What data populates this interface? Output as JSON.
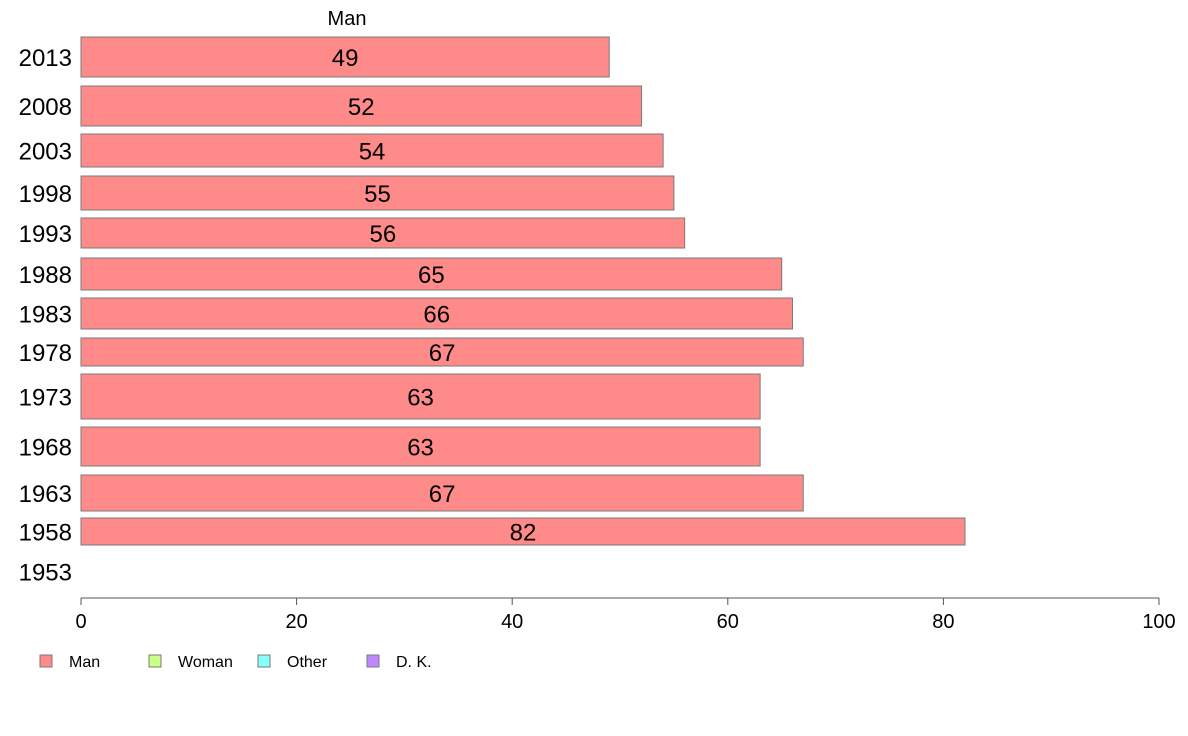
{
  "chart_data": {
    "type": "bar",
    "orientation": "horizontal",
    "title": "Man",
    "categories": [
      "2013",
      "2008",
      "2003",
      "1998",
      "1993",
      "1988",
      "1983",
      "1978",
      "1973",
      "1968",
      "1963",
      "1958",
      "1953"
    ],
    "series": [
      {
        "name": "Man",
        "values": [
          49,
          52,
          54,
          55,
          56,
          65,
          66,
          67,
          63,
          63,
          67,
          82,
          null
        ]
      }
    ],
    "data_labels": [
      "49",
      "52",
      "54",
      "55",
      "56",
      "65",
      "66",
      "67",
      "63",
      "63",
      "67",
      "82",
      ""
    ],
    "xlim": [
      0,
      100
    ],
    "xticks": [
      "0",
      "20",
      "40",
      "60",
      "80",
      "100"
    ],
    "grid": false,
    "legend": {
      "placement": "bottom-left",
      "items": [
        {
          "label": "Man",
          "color": "#ff8a8a"
        },
        {
          "label": "Woman",
          "color": "#ccff88"
        },
        {
          "label": "Other",
          "color": "#88ffff"
        },
        {
          "label": "D. K.",
          "color": "#bb88ff"
        }
      ]
    },
    "bar_color": "#ff8a8a"
  }
}
